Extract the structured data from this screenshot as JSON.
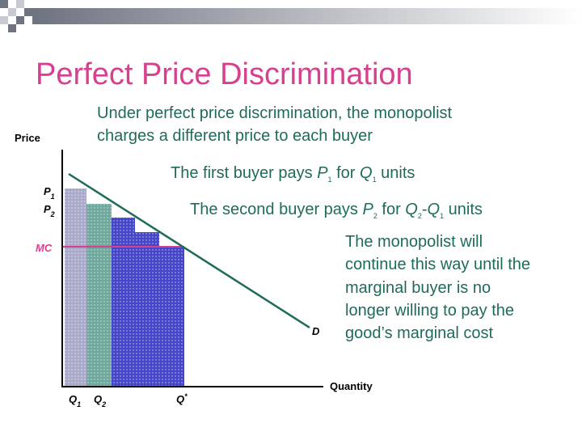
{
  "title": "Perfect Price Discrimination",
  "intro": {
    "lines": [
      "Under perfect price discrimination, the monopolist",
      "charges a different price to each buyer"
    ]
  },
  "notes": [
    {
      "runs": [
        "The first buyer pays ",
        "P",
        "1",
        " for ",
        "Q",
        "1",
        " units"
      ]
    },
    {
      "runs": [
        "The second buyer pays ",
        "P",
        "2",
        " for ",
        "Q",
        "2",
        "-",
        "Q",
        "1",
        " units"
      ]
    }
  ],
  "conclusion": {
    "lines": [
      "The monopolist will",
      "continue this way until the",
      "marginal buyer is no",
      "longer willing to pay the",
      "good’s marginal cost"
    ]
  },
  "diagram": {
    "y_axis_label": "Price",
    "x_axis_label": "Quantity",
    "price_labels": [
      {
        "runs": [
          "P",
          "1"
        ]
      },
      {
        "runs": [
          "P",
          "2"
        ]
      }
    ],
    "mc_label": "MC",
    "quantity_labels": [
      {
        "runs": [
          "Q",
          "1"
        ]
      },
      {
        "runs": [
          "Q",
          "2"
        ]
      },
      {
        "runs": [
          "Q",
          "*"
        ]
      }
    ],
    "demand_label": "D"
  }
}
